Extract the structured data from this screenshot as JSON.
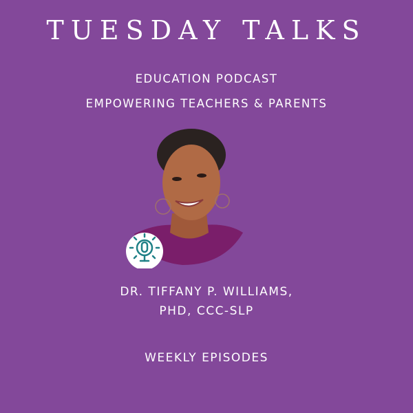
{
  "title": "TUESDAY TALKS",
  "subtitle_1": "EDUCATION PODCAST",
  "subtitle_2": "EMPOWERING TEACHERS & PARENTS",
  "host": {
    "line_1": "DR. TIFFANY P. WILLIAMS,",
    "line_2": "PHD, CCC-SLP"
  },
  "schedule": "WEEKLY EPISODES",
  "colors": {
    "background": "#83489a",
    "text": "#ffffff",
    "icon_teal": "#1e8086",
    "shirt": "#7a1e6a"
  },
  "icons": {
    "badge": "podcast-microphone-icon"
  }
}
